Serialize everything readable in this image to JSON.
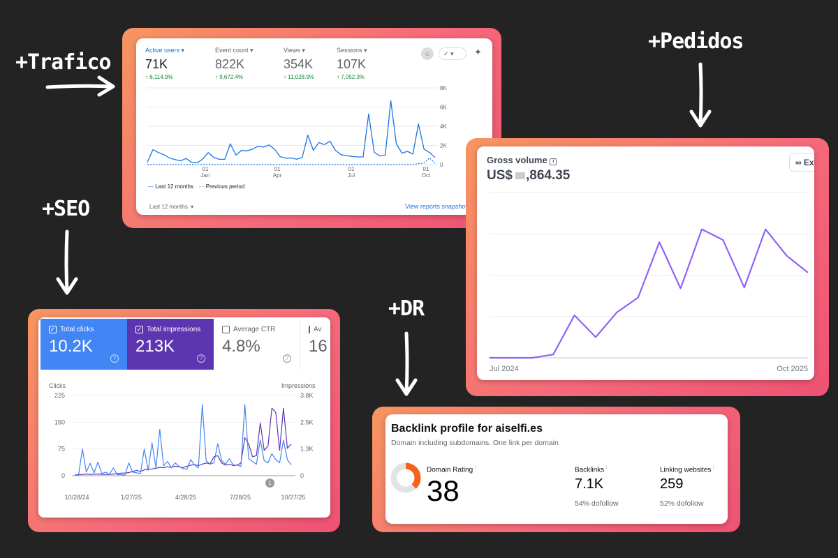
{
  "annotations": {
    "traffic": "+Trafico",
    "orders": "+Pedidos",
    "seo": "+SEO",
    "dr": "+DR"
  },
  "colors": {
    "background": "#232323",
    "frame_gradient": [
      "#f7955f",
      "#ee5273"
    ],
    "ga_line": "#1a73e8",
    "gsc_clicks": "#4285f4",
    "gsc_impressions": "#5e35b1",
    "stripe_line": "#9061f9",
    "dr_donut": "#f5641e"
  },
  "analytics": {
    "metrics": [
      {
        "label": "Active users",
        "value": "71K",
        "change": "6,114.9%",
        "active": true
      },
      {
        "label": "Event count",
        "value": "822K",
        "change": "9,672.4%",
        "active": false
      },
      {
        "label": "Views",
        "value": "354K",
        "change": "11,028.9%",
        "active": false
      },
      {
        "label": "Sessions",
        "value": "107K",
        "change": "7,052.3%",
        "active": false
      }
    ],
    "legend": {
      "current": "Last 12 months",
      "previous": "Previous period"
    },
    "footer": {
      "range": "Last 12 months",
      "link": "View reports snapshot"
    },
    "icons": [
      "comparison-avatar-icon",
      "check-circle-icon",
      "sparkle-icon"
    ]
  },
  "stripe": {
    "title": "Gross volume",
    "value_prefix": "US$",
    "value_suffix": ",864.35",
    "button": "Ex",
    "icons": [
      "info-icon",
      "binoculars-icon"
    ]
  },
  "gsc": {
    "tiles": [
      {
        "label": "Total clicks",
        "value": "10.2K",
        "checked": true
      },
      {
        "label": "Total impressions",
        "value": "213K",
        "checked": true
      },
      {
        "label": "Average CTR",
        "value": "4.8%",
        "checked": false
      },
      {
        "label": "Av",
        "value": "16",
        "checked": false
      }
    ],
    "left_axis_title": "Clicks",
    "right_axis_title": "Impressions",
    "annotation_marker": "1"
  },
  "ahrefs": {
    "title": "Backlink profile for aiselfi.es",
    "subtitle": "Domain including subdomains. One link per domain",
    "domain_rating": {
      "label": "Domain Rating",
      "value": "38",
      "fraction": 0.38
    },
    "backlinks": {
      "label": "Backlinks",
      "value": "7.1K",
      "sub": "54% dofollow"
    },
    "linking": {
      "label": "Linking websites",
      "value": "259",
      "sub": "52% dofollow"
    }
  },
  "chart_data": [
    {
      "type": "line",
      "ylim": [
        0,
        8000
      ],
      "yticks": [
        "0",
        "2K",
        "4K",
        "6K",
        "8K"
      ],
      "xticks": [
        [
          "01",
          "Jan"
        ],
        [
          "01",
          "Apr"
        ],
        [
          "01",
          "Jul"
        ],
        [
          "01",
          "Oct"
        ]
      ],
      "series": [
        {
          "name": "Last 12 months",
          "values": [
            230,
            1560,
            1260,
            1030,
            690,
            530,
            390,
            640,
            230,
            180,
            570,
            1260,
            760,
            550,
            550,
            2180,
            990,
            1470,
            1430,
            1610,
            1910,
            1820,
            2050,
            1610,
            830,
            670,
            690,
            570,
            760,
            3080,
            1490,
            2300,
            2090,
            2440,
            1490,
            1030,
            940,
            850,
            800,
            800,
            5290,
            1310,
            900,
            990,
            6670,
            2180,
            1200,
            1380,
            1100,
            4250,
            1610,
            1260,
            740
          ]
        },
        {
          "name": "Previous period",
          "values": [
            0,
            0,
            0,
            0,
            0,
            0,
            0,
            0,
            0,
            0,
            0,
            0,
            0,
            0,
            0,
            0,
            0,
            0,
            0,
            0,
            0,
            0,
            0,
            0,
            0,
            0,
            0,
            0,
            0,
            0,
            0,
            0,
            0,
            0,
            0,
            0,
            0,
            0,
            0,
            0,
            0,
            0,
            0,
            0,
            0,
            0,
            0,
            0,
            0,
            110,
            160,
            690,
            160
          ]
        }
      ]
    },
    {
      "type": "line",
      "xticks": [
        "Jul 2024",
        "Oct 2025"
      ],
      "grid": true,
      "series": [
        {
          "values": [
            0,
            0,
            0,
            0.08,
            1.03,
            0.5,
            1.1,
            1.46,
            2.8,
            1.68,
            3.11,
            2.85,
            1.7,
            3.11,
            2.47,
            2.06
          ]
        }
      ]
    },
    {
      "type": "line",
      "xticks": [
        "10/28/24",
        "1/27/25",
        "4/28/25",
        "7/28/25",
        "10/27/25"
      ],
      "left_axis": {
        "title": "Clicks",
        "ylim": [
          0,
          225
        ],
        "ticks": [
          "0",
          "75",
          "150",
          "225"
        ]
      },
      "right_axis": {
        "title": "Impressions",
        "ylim": [
          0,
          3800
        ],
        "ticks": [
          "0",
          "1.3K",
          "2.5K",
          "3.8K"
        ]
      },
      "series": [
        {
          "name": "Clicks",
          "values": [
            1,
            2,
            75,
            10,
            35,
            8,
            38,
            6,
            10,
            4,
            22,
            3,
            3,
            2,
            36,
            10,
            8,
            6,
            75,
            15,
            92,
            22,
            130,
            28,
            40,
            22,
            36,
            26,
            20,
            18,
            45,
            30,
            22,
            200,
            42,
            32,
            36,
            90,
            42,
            32,
            48,
            30,
            30,
            26,
            200,
            48,
            40,
            32,
            100,
            42,
            36,
            62,
            45,
            36,
            100,
            45,
            30
          ]
        },
        {
          "name": "Impressions",
          "values": [
            30,
            50,
            60,
            80,
            60,
            70,
            80,
            60,
            60,
            60,
            80,
            100,
            120,
            130,
            150,
            200,
            250,
            200,
            280,
            300,
            320,
            350,
            400,
            380,
            420,
            400,
            450,
            420,
            380,
            450,
            500,
            520,
            480,
            550,
            600,
            560,
            900,
            950,
            600,
            500,
            550,
            480,
            500,
            600,
            1800,
            1500,
            900,
            950,
            2500,
            1200,
            1400,
            3200,
            3000,
            1200,
            3200,
            1300,
            1500
          ]
        }
      ]
    }
  ]
}
